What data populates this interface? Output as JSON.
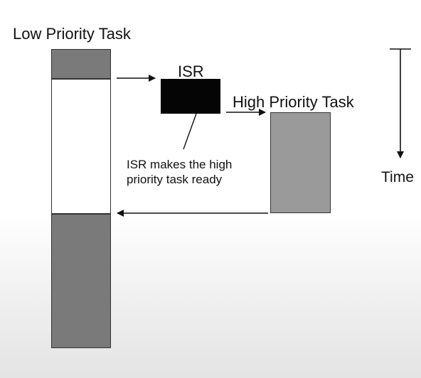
{
  "diagram": {
    "low_priority_task": "Low Priority Task",
    "isr": "ISR",
    "high_priority_task": "High Priority Task",
    "time": "Time",
    "isr_note_line1": "ISR makes the high",
    "isr_note_line2": "priority task ready"
  },
  "colors": {
    "task_gray_dark": "#7a7a7a",
    "task_gray_light": "#9a9a9a",
    "isr_black": "#050505",
    "line": "#111111"
  }
}
